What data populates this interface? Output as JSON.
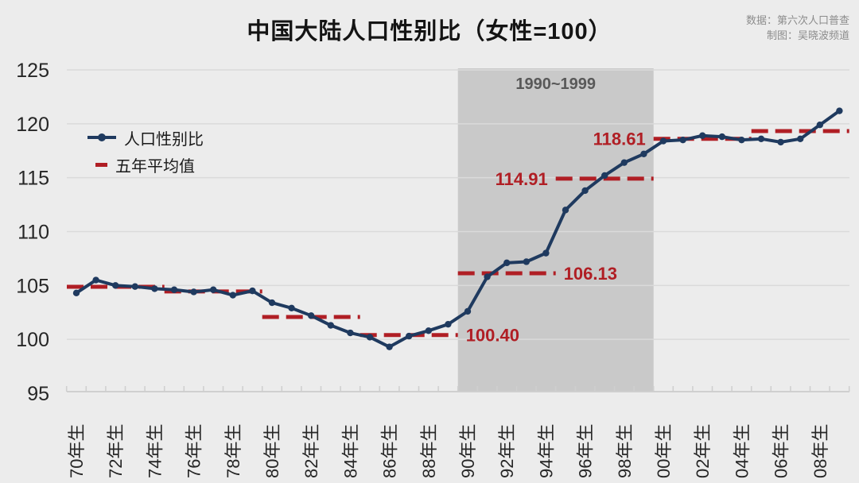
{
  "title": "中国大陆人口性别比（女性=100）",
  "credits": {
    "line1": "数据：第六次人口普查",
    "line2": "制图：吴晓波频道"
  },
  "legend": {
    "series_label": "人口性别比",
    "avg_label": "五年平均值"
  },
  "colors": {
    "background": "#ececec",
    "line": "#1f3a5f",
    "avg": "#b01e24",
    "band": "#c9c9c9",
    "band_label": "#595959",
    "grid": "#dadada",
    "axis_line": "#cfcfcf",
    "axis_text": "#262626",
    "credits_text": "#8c8c8c"
  },
  "chart_data": {
    "type": "line",
    "title": "中国大陆人口性别比（女性=100）",
    "xlabel": "",
    "ylabel": "",
    "ylim": [
      95,
      125
    ],
    "yticks": [
      95,
      100,
      105,
      110,
      115,
      120,
      125
    ],
    "grid": true,
    "legend_position": "top-left",
    "x_years": [
      1970,
      1971,
      1972,
      1973,
      1974,
      1975,
      1976,
      1977,
      1978,
      1979,
      1980,
      1981,
      1982,
      1983,
      1984,
      1985,
      1986,
      1987,
      1988,
      1989,
      1990,
      1991,
      1992,
      1993,
      1994,
      1995,
      1996,
      1997,
      1998,
      1999,
      2000,
      2001,
      2002,
      2003,
      2004,
      2005,
      2006,
      2007,
      2008,
      2009
    ],
    "x_tick_labels": [
      "70年生",
      "72年生",
      "74年生",
      "76年生",
      "78年生",
      "80年生",
      "82年生",
      "84年生",
      "86年生",
      "88年生",
      "90年生",
      "92年生",
      "94年生",
      "96年生",
      "98年生",
      "00年生",
      "02年生",
      "04年生",
      "06年生",
      "08年生"
    ],
    "x_tick_years": [
      1970,
      1972,
      1974,
      1976,
      1978,
      1980,
      1982,
      1984,
      1986,
      1988,
      1990,
      1992,
      1994,
      1996,
      1998,
      2000,
      2002,
      2004,
      2006,
      2008
    ],
    "series": [
      {
        "name": "人口性别比",
        "values": [
          104.3,
          105.5,
          105.0,
          104.9,
          104.7,
          104.6,
          104.4,
          104.6,
          104.1,
          104.5,
          103.4,
          102.9,
          102.2,
          101.3,
          100.6,
          100.2,
          99.3,
          100.3,
          100.8,
          101.4,
          102.6,
          105.8,
          107.1,
          107.2,
          108.0,
          112.0,
          113.8,
          115.2,
          116.4,
          117.2,
          118.4,
          118.5,
          118.9,
          118.8,
          118.5,
          118.6,
          118.3,
          118.6,
          119.9,
          121.2
        ]
      }
    ],
    "five_year_averages": [
      {
        "period": "1970-1974",
        "from": 1970,
        "to": 1974,
        "value": 104.88,
        "label": "",
        "label_side": "none"
      },
      {
        "period": "1975-1979",
        "from": 1975,
        "to": 1979,
        "value": 104.44,
        "label": "",
        "label_side": "none"
      },
      {
        "period": "1980-1984",
        "from": 1980,
        "to": 1984,
        "value": 102.08,
        "label": "",
        "label_side": "none"
      },
      {
        "period": "1985-1989",
        "from": 1985,
        "to": 1989,
        "value": 100.4,
        "label": "100.40",
        "label_side": "right"
      },
      {
        "period": "1990-1994",
        "from": 1990,
        "to": 1994,
        "value": 106.13,
        "label": "106.13",
        "label_side": "right"
      },
      {
        "period": "1995-1999",
        "from": 1995,
        "to": 1999,
        "value": 114.91,
        "label": "114.91",
        "label_side": "left"
      },
      {
        "period": "2000-2004",
        "from": 2000,
        "to": 2004,
        "value": 118.61,
        "label": "118.61",
        "label_side": "left"
      },
      {
        "period": "2005-2009",
        "from": 2005,
        "to": 2009,
        "value": 119.32,
        "label": "",
        "label_side": "none"
      }
    ],
    "highlight_band": {
      "from": 1990,
      "to": 1999,
      "label": "1990~1999"
    }
  }
}
